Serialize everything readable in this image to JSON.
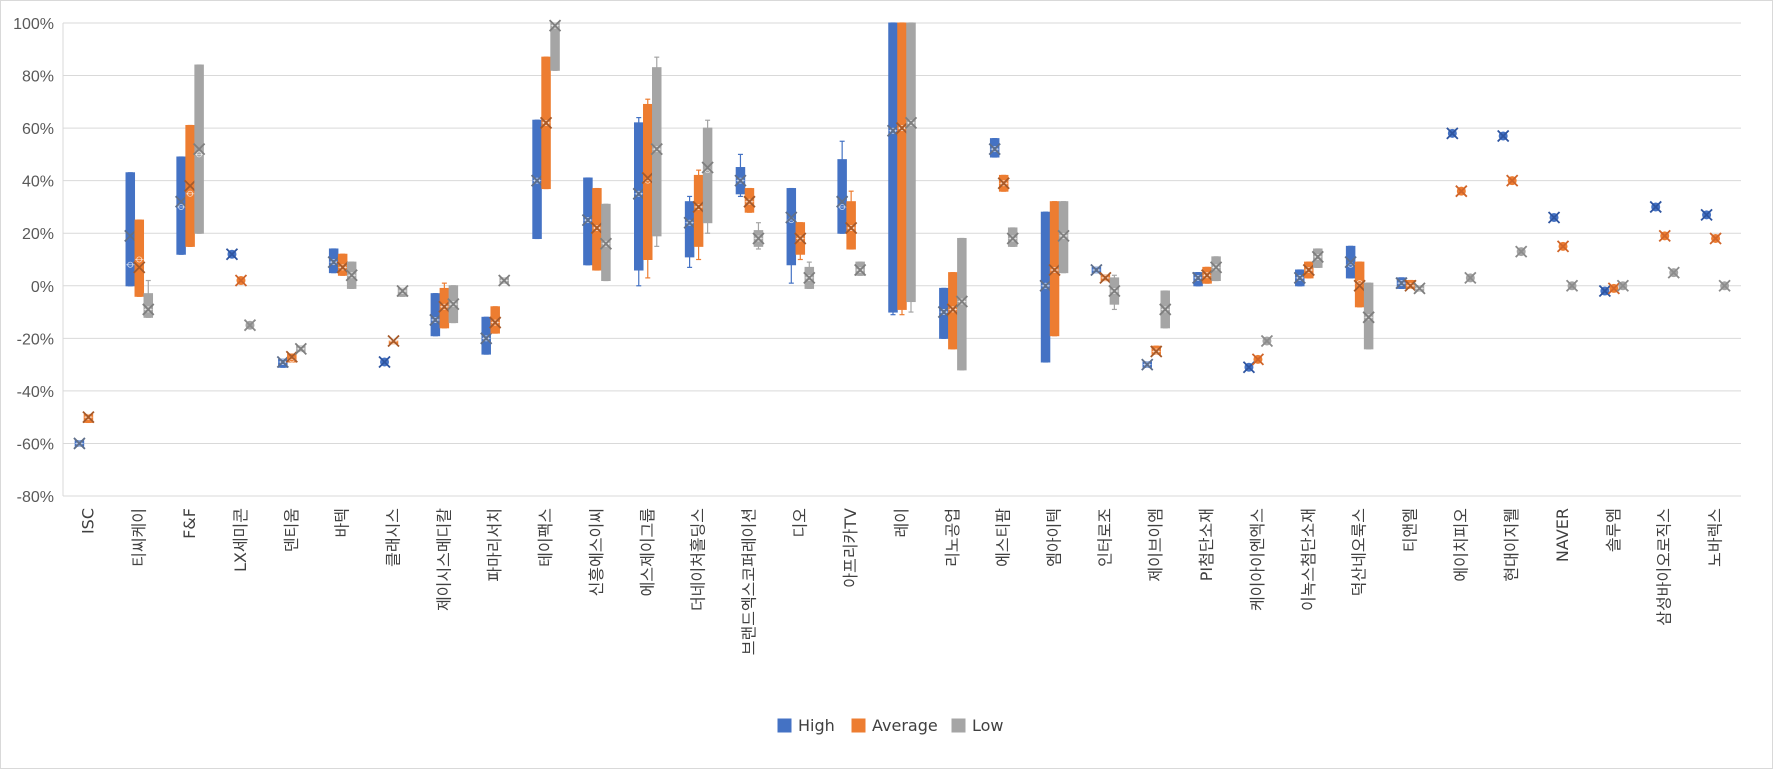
{
  "chart_data": {
    "type": "box",
    "ylim": [
      -80,
      100
    ],
    "y_ticks": [
      "100%",
      "80%",
      "60%",
      "40%",
      "20%",
      "0%",
      "-20%",
      "-40%",
      "-60%",
      "-80%"
    ],
    "y_tick_values": [
      100,
      80,
      60,
      40,
      20,
      0,
      -20,
      -40,
      -60,
      -80
    ],
    "grid": "horizontal",
    "legend_position": "bottom",
    "series_names": [
      "High",
      "Average",
      "Low"
    ],
    "colors": {
      "High": "#4472C4",
      "Average": "#ED7D31",
      "Low": "#A5A5A5"
    },
    "categories": [
      {
        "label": "ISC",
        "boxes": [
          [
            -61,
            -61,
            -60,
            -59,
            -59,
            -60
          ],
          [
            -52,
            -52,
            -50,
            -49,
            -49,
            -50
          ],
          null
        ]
      },
      {
        "label": "티씨케이",
        "boxes": [
          [
            0,
            0,
            8,
            43,
            43,
            19
          ],
          [
            -4,
            -4,
            10,
            25,
            25,
            7
          ],
          [
            -12,
            -12,
            -9,
            -3,
            2,
            -9
          ]
        ]
      },
      {
        "label": "F&F",
        "boxes": [
          [
            12,
            12,
            30,
            49,
            49,
            32
          ],
          [
            15,
            15,
            35,
            61,
            61,
            38
          ],
          [
            20,
            20,
            50,
            84,
            84,
            52
          ]
        ]
      },
      {
        "label": "LX세미콘",
        "boxes": [
          [
            12,
            12,
            12,
            12,
            12,
            12
          ],
          [
            2,
            2,
            2,
            2,
            2,
            2
          ],
          [
            -15,
            -15,
            -15,
            -15,
            -15,
            -15
          ]
        ]
      },
      {
        "label": "덴티움",
        "boxes": [
          [
            -31,
            -31,
            -29,
            -28,
            -28,
            -29
          ],
          [
            -29,
            -29,
            -28,
            -26,
            -26,
            -27
          ],
          [
            -25,
            -25,
            -24,
            -23,
            -23,
            -24
          ]
        ]
      },
      {
        "label": "바텍",
        "boxes": [
          [
            5,
            5,
            9,
            14,
            14,
            9
          ],
          [
            4,
            4,
            7,
            12,
            12,
            7
          ],
          [
            -1,
            -1,
            4,
            9,
            9,
            4
          ]
        ]
      },
      {
        "label": "클래시스",
        "boxes": [
          [
            -29,
            -29,
            -29,
            -29,
            -29,
            -29
          ],
          [
            -22,
            -22,
            -21,
            -21,
            -21,
            -21
          ],
          [
            -4,
            -4,
            -2,
            -1,
            -1,
            -2
          ]
        ]
      },
      {
        "label": "제이시스메디칼",
        "boxes": [
          [
            -19,
            -19,
            -13,
            -3,
            -3,
            -13
          ],
          [
            -16,
            -16,
            -8,
            -1,
            1,
            -8
          ],
          [
            -14,
            -14,
            -7,
            0,
            0,
            -7
          ]
        ]
      },
      {
        "label": "파마리서치",
        "boxes": [
          [
            -26,
            -26,
            -20,
            -12,
            -12,
            -20
          ],
          [
            -18,
            -18,
            -14,
            -8,
            -8,
            -14
          ],
          [
            1,
            1,
            2,
            3,
            3,
            2
          ]
        ]
      },
      {
        "label": "테이팩스",
        "boxes": [
          [
            18,
            18,
            40,
            63,
            63,
            40
          ],
          [
            37,
            37,
            62,
            87,
            87,
            62
          ],
          [
            82,
            82,
            99,
            100,
            100,
            99
          ]
        ]
      },
      {
        "label": "신흥에스이씨",
        "boxes": [
          [
            8,
            8,
            25,
            41,
            41,
            25
          ],
          [
            6,
            6,
            22,
            37,
            37,
            22
          ],
          [
            2,
            2,
            16,
            31,
            31,
            16
          ]
        ]
      },
      {
        "label": "에스제이그룹",
        "boxes": [
          [
            0,
            6,
            35,
            62,
            64,
            35
          ],
          [
            3,
            10,
            40,
            69,
            71,
            41
          ],
          [
            15,
            19,
            52,
            83,
            87,
            52
          ]
        ]
      },
      {
        "label": "더네이처홀딩스",
        "boxes": [
          [
            7,
            11,
            24,
            32,
            34,
            24
          ],
          [
            10,
            15,
            30,
            42,
            44,
            30
          ],
          [
            20,
            24,
            44,
            60,
            63,
            45
          ]
        ]
      },
      {
        "label": "브랜드엑스코퍼레이션",
        "boxes": [
          [
            34,
            35,
            40,
            45,
            50,
            40
          ],
          [
            28,
            28,
            32,
            37,
            37,
            32
          ],
          [
            14,
            15,
            18,
            21,
            24,
            18
          ]
        ]
      },
      {
        "label": "디오",
        "boxes": [
          [
            1,
            8,
            25,
            37,
            37,
            26
          ],
          [
            10,
            12,
            18,
            24,
            24,
            18
          ],
          [
            -1,
            -1,
            3,
            7,
            9,
            3
          ]
        ]
      },
      {
        "label": "아프리카TV",
        "boxes": [
          [
            20,
            20,
            30,
            48,
            55,
            32
          ],
          [
            14,
            14,
            22,
            32,
            36,
            22
          ],
          [
            4,
            4,
            6,
            9,
            9,
            6
          ]
        ]
      },
      {
        "label": "레이",
        "boxes": [
          [
            -11,
            -10,
            59,
            100,
            100,
            59
          ],
          [
            -11,
            -9,
            60,
            100,
            100,
            60
          ],
          [
            -10,
            -6,
            62,
            100,
            100,
            62
          ]
        ]
      },
      {
        "label": "리노공업",
        "boxes": [
          [
            -20,
            -20,
            -10,
            -1,
            -1,
            -10
          ],
          [
            -24,
            -24,
            -9,
            5,
            5,
            -9
          ],
          [
            -32,
            -32,
            -6,
            18,
            18,
            -6
          ]
        ]
      },
      {
        "label": "에스티팜",
        "boxes": [
          [
            49,
            49,
            52,
            56,
            56,
            52
          ],
          [
            36,
            36,
            39,
            42,
            42,
            39
          ],
          [
            15,
            15,
            18,
            22,
            22,
            18
          ]
        ]
      },
      {
        "label": "엠아이텍",
        "boxes": [
          [
            -29,
            -29,
            0,
            28,
            28,
            0
          ],
          [
            -19,
            -19,
            6,
            32,
            32,
            6
          ],
          [
            5,
            5,
            19,
            32,
            32,
            19
          ]
        ]
      },
      {
        "label": "인터로조",
        "boxes": [
          [
            5,
            5,
            6,
            7,
            7,
            6
          ],
          [
            2,
            2,
            3,
            4,
            4,
            3
          ],
          [
            -9,
            -7,
            -2,
            3,
            4,
            -2
          ]
        ]
      },
      {
        "label": "제이브이엠",
        "boxes": [
          [
            -31,
            -31,
            -30,
            -29,
            -29,
            -30
          ],
          [
            -26,
            -26,
            -25,
            -23,
            -23,
            -25
          ],
          [
            -16,
            -16,
            -9,
            -2,
            -2,
            -9
          ]
        ]
      },
      {
        "label": "PI첨단소재",
        "boxes": [
          [
            0,
            0,
            3,
            5,
            5,
            3
          ],
          [
            1,
            1,
            4,
            7,
            7,
            4
          ],
          [
            2,
            2,
            7,
            11,
            11,
            7
          ]
        ]
      },
      {
        "label": "케이아이엔엑스",
        "boxes": [
          [
            -31,
            -31,
            -31,
            -31,
            -31,
            -31
          ],
          [
            -28,
            -28,
            -28,
            -28,
            -28,
            -28
          ],
          [
            -21,
            -21,
            -21,
            -21,
            -21,
            -21
          ]
        ]
      },
      {
        "label": "이녹스첨단소재",
        "boxes": [
          [
            0,
            0,
            3,
            6,
            6,
            3
          ],
          [
            3,
            3,
            6,
            9,
            9,
            6
          ],
          [
            7,
            7,
            11,
            14,
            14,
            11
          ]
        ]
      },
      {
        "label": "덕산네오룩스",
        "boxes": [
          [
            3,
            3,
            8,
            15,
            15,
            9
          ],
          [
            -8,
            -8,
            1,
            9,
            9,
            0
          ],
          [
            -24,
            -24,
            -12,
            1,
            1,
            -12
          ]
        ]
      },
      {
        "label": "티앤엘",
        "boxes": [
          [
            -1,
            -1,
            1,
            3,
            3,
            1
          ],
          [
            -1,
            -1,
            0,
            2,
            2,
            0
          ],
          [
            -2,
            -2,
            -1,
            0,
            0,
            -1
          ]
        ]
      },
      {
        "label": "에이치피오",
        "boxes": [
          [
            58,
            58,
            58,
            58,
            58,
            58
          ],
          [
            36,
            36,
            36,
            36,
            36,
            36
          ],
          [
            3,
            3,
            3,
            3,
            3,
            3
          ]
        ]
      },
      {
        "label": "현대이지웰",
        "boxes": [
          [
            57,
            57,
            57,
            57,
            57,
            57
          ],
          [
            40,
            40,
            40,
            40,
            40,
            40
          ],
          [
            13,
            13,
            13,
            13,
            13,
            13
          ]
        ]
      },
      {
        "label": "NAVER",
        "boxes": [
          [
            26,
            26,
            26,
            26,
            26,
            26
          ],
          [
            15,
            15,
            15,
            15,
            15,
            15
          ],
          [
            0,
            0,
            0,
            0,
            0,
            0
          ]
        ]
      },
      {
        "label": "솔루엠",
        "boxes": [
          [
            -2,
            -2,
            -2,
            -2,
            -2,
            -2
          ],
          [
            -1,
            -1,
            -1,
            -1,
            -1,
            -1
          ],
          [
            0,
            0,
            0,
            0,
            0,
            0
          ]
        ]
      },
      {
        "label": "삼성바이오로직스",
        "boxes": [
          [
            30,
            30,
            30,
            30,
            30,
            30
          ],
          [
            19,
            19,
            19,
            19,
            19,
            19
          ],
          [
            5,
            5,
            5,
            5,
            5,
            5
          ]
        ]
      },
      {
        "label": "노바렉스",
        "boxes": [
          [
            27,
            27,
            27,
            27,
            27,
            27
          ],
          [
            18,
            18,
            18,
            18,
            18,
            18
          ],
          [
            0,
            0,
            0,
            0,
            0,
            0
          ]
        ]
      }
    ]
  }
}
